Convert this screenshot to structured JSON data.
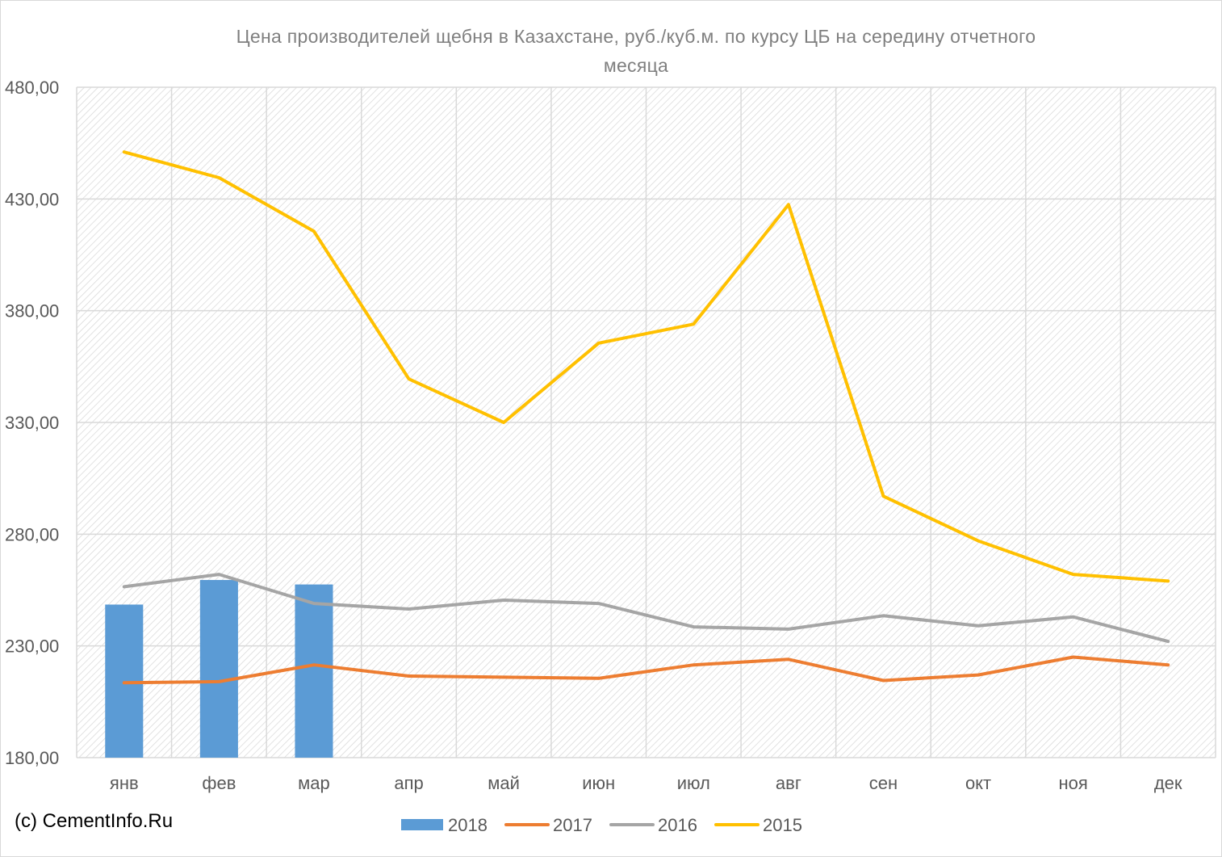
{
  "chart_data": {
    "type": "bar+line",
    "title_lines": [
      "Цена производителей  щебня в Казахстане, руб./куб.м.  по курсу ЦБ на середину отчетного",
      "месяца"
    ],
    "categories": [
      "янв",
      "фев",
      "мар",
      "апр",
      "май",
      "июн",
      "июл",
      "авг",
      "сен",
      "окт",
      "ноя",
      "дек"
    ],
    "y_ticks": [
      "180,00",
      "230,00",
      "280,00",
      "330,00",
      "380,00",
      "430,00",
      "480,00"
    ],
    "ylim": [
      180,
      480
    ],
    "grid": true,
    "legend_position": "bottom",
    "series": [
      {
        "name": "2018",
        "type": "bar",
        "color": "#5b9bd5",
        "values": [
          248.5,
          259.5,
          257.5,
          null,
          null,
          null,
          null,
          null,
          null,
          null,
          null,
          null
        ]
      },
      {
        "name": "2017",
        "type": "line",
        "color": "#ed7d31",
        "values": [
          213.5,
          214,
          221.5,
          216.5,
          216,
          215.5,
          221.5,
          224,
          214.5,
          217,
          225,
          221.5
        ]
      },
      {
        "name": "2016",
        "type": "line",
        "color": "#a5a5a5",
        "values": [
          256.5,
          262,
          249,
          246.5,
          250.5,
          249,
          238.5,
          237.5,
          243.5,
          239,
          243,
          232
        ]
      },
      {
        "name": "2015",
        "type": "line",
        "color": "#ffc000",
        "values": [
          451,
          439.5,
          415.5,
          349.5,
          330,
          365.5,
          374,
          427.5,
          297,
          277,
          262,
          259
        ]
      }
    ]
  },
  "footer": {
    "copyright": "(c) CementInfo.Ru"
  }
}
